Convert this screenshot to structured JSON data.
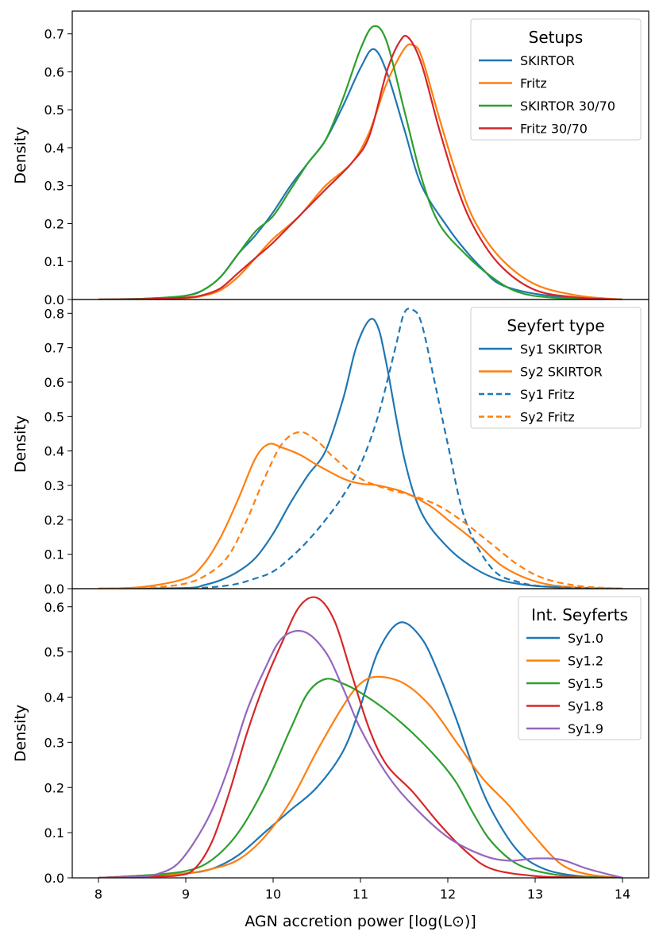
{
  "figure": {
    "xlabel": "AGN accretion power [log(L⊙)]",
    "x_ticks": [
      8,
      9,
      10,
      11,
      12,
      13,
      14
    ],
    "xlim": [
      7.7,
      14.3
    ]
  },
  "chart_data": [
    {
      "type": "line",
      "ylabel": "Density",
      "ylim": [
        0,
        0.76
      ],
      "y_ticks": [
        0.0,
        0.1,
        0.2,
        0.3,
        0.4,
        0.5,
        0.6,
        0.7
      ],
      "legend": {
        "title": "Setups",
        "position": "top-right"
      },
      "series": [
        {
          "name": "SKIRTOR",
          "color": "#1f77b4",
          "dash": false,
          "x": [
            8.0,
            8.5,
            8.8,
            9.0,
            9.2,
            9.4,
            9.6,
            9.8,
            10.0,
            10.2,
            10.4,
            10.6,
            10.8,
            11.0,
            11.15,
            11.3,
            11.5,
            11.7,
            12.0,
            12.2,
            12.4,
            12.6,
            13.0,
            13.5,
            14.0
          ],
          "y": [
            0.0,
            0.002,
            0.005,
            0.01,
            0.025,
            0.06,
            0.12,
            0.17,
            0.23,
            0.3,
            0.36,
            0.42,
            0.51,
            0.61,
            0.66,
            0.6,
            0.45,
            0.3,
            0.19,
            0.13,
            0.08,
            0.04,
            0.015,
            0.004,
            0.0
          ]
        },
        {
          "name": "Fritz",
          "color": "#ff7f0e",
          "dash": false,
          "x": [
            8.0,
            8.5,
            9.0,
            9.2,
            9.4,
            9.6,
            9.8,
            10.0,
            10.3,
            10.6,
            10.9,
            11.1,
            11.3,
            11.5,
            11.6,
            11.7,
            11.9,
            12.1,
            12.3,
            12.6,
            13.0,
            13.5,
            14.0
          ],
          "y": [
            0.0,
            0.001,
            0.004,
            0.01,
            0.025,
            0.06,
            0.11,
            0.16,
            0.22,
            0.3,
            0.36,
            0.44,
            0.57,
            0.66,
            0.67,
            0.64,
            0.48,
            0.33,
            0.21,
            0.11,
            0.04,
            0.01,
            0.0
          ]
        },
        {
          "name": "SKIRTOR 30/70",
          "color": "#2ca02c",
          "dash": false,
          "x": [
            8.0,
            8.5,
            9.0,
            9.2,
            9.4,
            9.6,
            9.8,
            10.0,
            10.2,
            10.4,
            10.6,
            10.8,
            11.0,
            11.15,
            11.3,
            11.5,
            11.7,
            11.9,
            12.2,
            12.5,
            12.8,
            13.2,
            14.0
          ],
          "y": [
            0.0,
            0.002,
            0.01,
            0.025,
            0.06,
            0.12,
            0.18,
            0.22,
            0.29,
            0.36,
            0.42,
            0.53,
            0.66,
            0.72,
            0.68,
            0.5,
            0.32,
            0.2,
            0.12,
            0.06,
            0.02,
            0.005,
            0.0
          ]
        },
        {
          "name": "Fritz 30/70",
          "color": "#d62728",
          "dash": false,
          "x": [
            8.0,
            8.5,
            9.0,
            9.2,
            9.4,
            9.6,
            9.8,
            10.0,
            10.3,
            10.6,
            10.9,
            11.1,
            11.3,
            11.45,
            11.55,
            11.7,
            11.9,
            12.1,
            12.3,
            12.6,
            13.0,
            13.5,
            14.0
          ],
          "y": [
            0.0,
            0.001,
            0.005,
            0.012,
            0.03,
            0.07,
            0.11,
            0.15,
            0.22,
            0.29,
            0.36,
            0.43,
            0.6,
            0.68,
            0.69,
            0.62,
            0.45,
            0.3,
            0.19,
            0.09,
            0.025,
            0.005,
            0.0
          ]
        }
      ]
    },
    {
      "type": "line",
      "ylabel": "Density",
      "ylim": [
        0,
        0.84
      ],
      "y_ticks": [
        0.0,
        0.1,
        0.2,
        0.3,
        0.4,
        0.5,
        0.6,
        0.7,
        0.8
      ],
      "legend": {
        "title": "Seyfert type",
        "position": "top-right"
      },
      "series": [
        {
          "name": "Sy1 SKIRTOR",
          "color": "#1f77b4",
          "dash": false,
          "x": [
            8.0,
            9.0,
            9.2,
            9.4,
            9.6,
            9.8,
            10.0,
            10.2,
            10.4,
            10.6,
            10.8,
            10.95,
            11.1,
            11.2,
            11.3,
            11.5,
            11.7,
            12.0,
            12.3,
            12.6,
            13.0,
            13.5,
            14.0
          ],
          "y": [
            0.0,
            0.002,
            0.01,
            0.025,
            0.05,
            0.09,
            0.16,
            0.25,
            0.33,
            0.4,
            0.55,
            0.7,
            0.78,
            0.76,
            0.65,
            0.38,
            0.22,
            0.12,
            0.06,
            0.025,
            0.008,
            0.002,
            0.0
          ]
        },
        {
          "name": "Sy2 SKIRTOR",
          "color": "#ff7f0e",
          "dash": false,
          "x": [
            8.0,
            8.5,
            9.0,
            9.2,
            9.4,
            9.6,
            9.8,
            9.95,
            10.1,
            10.3,
            10.5,
            10.8,
            11.0,
            11.2,
            11.5,
            11.8,
            12.0,
            12.3,
            12.6,
            12.9,
            13.2,
            13.6,
            14.0
          ],
          "y": [
            0.0,
            0.005,
            0.03,
            0.07,
            0.15,
            0.26,
            0.38,
            0.42,
            0.41,
            0.39,
            0.36,
            0.32,
            0.305,
            0.3,
            0.28,
            0.24,
            0.2,
            0.14,
            0.07,
            0.03,
            0.01,
            0.002,
            0.0
          ]
        },
        {
          "name": "Sy1 Fritz",
          "color": "#1f77b4",
          "dash": true,
          "x": [
            8.0,
            9.0,
            9.5,
            9.8,
            10.0,
            10.2,
            10.4,
            10.6,
            10.8,
            11.0,
            11.2,
            11.4,
            11.5,
            11.6,
            11.7,
            11.85,
            12.0,
            12.2,
            12.5,
            12.8,
            13.2,
            14.0
          ],
          "y": [
            0.0,
            0.001,
            0.01,
            0.03,
            0.05,
            0.09,
            0.14,
            0.2,
            0.27,
            0.36,
            0.5,
            0.7,
            0.8,
            0.81,
            0.77,
            0.6,
            0.42,
            0.2,
            0.06,
            0.02,
            0.005,
            0.0
          ]
        },
        {
          "name": "Sy2 Fritz",
          "color": "#ff7f0e",
          "dash": true,
          "x": [
            8.0,
            8.5,
            9.0,
            9.3,
            9.5,
            9.7,
            9.9,
            10.1,
            10.3,
            10.5,
            10.7,
            11.0,
            11.3,
            11.6,
            11.9,
            12.2,
            12.5,
            12.8,
            13.1,
            13.5,
            14.0
          ],
          "y": [
            0.0,
            0.002,
            0.015,
            0.05,
            0.1,
            0.2,
            0.32,
            0.42,
            0.455,
            0.43,
            0.38,
            0.32,
            0.29,
            0.27,
            0.24,
            0.19,
            0.13,
            0.07,
            0.03,
            0.008,
            0.0
          ]
        }
      ]
    },
    {
      "type": "line",
      "ylabel": "Density",
      "ylim": [
        0,
        0.64
      ],
      "y_ticks": [
        0.0,
        0.1,
        0.2,
        0.3,
        0.4,
        0.5,
        0.6
      ],
      "legend": {
        "title": "Int. Seyferts",
        "position": "top-right"
      },
      "series": [
        {
          "name": "Sy1.0",
          "color": "#1f77b4",
          "dash": false,
          "x": [
            8.0,
            8.5,
            9.0,
            9.3,
            9.6,
            9.9,
            10.2,
            10.5,
            10.8,
            11.0,
            11.2,
            11.45,
            11.7,
            11.9,
            12.1,
            12.3,
            12.5,
            12.8,
            13.1,
            13.5,
            14.0
          ],
          "y": [
            0.0,
            0.005,
            0.01,
            0.02,
            0.05,
            0.1,
            0.15,
            0.2,
            0.28,
            0.38,
            0.5,
            0.565,
            0.53,
            0.45,
            0.35,
            0.24,
            0.15,
            0.06,
            0.02,
            0.004,
            0.0
          ]
        },
        {
          "name": "Sy1.2",
          "color": "#ff7f0e",
          "dash": false,
          "x": [
            8.0,
            8.5,
            9.0,
            9.3,
            9.6,
            9.9,
            10.2,
            10.5,
            10.8,
            11.0,
            11.2,
            11.5,
            11.8,
            12.1,
            12.4,
            12.7,
            13.0,
            13.3,
            13.6,
            14.0
          ],
          "y": [
            0.0,
            0.005,
            0.01,
            0.02,
            0.04,
            0.09,
            0.17,
            0.28,
            0.38,
            0.43,
            0.445,
            0.43,
            0.38,
            0.3,
            0.22,
            0.16,
            0.09,
            0.03,
            0.008,
            0.0
          ]
        },
        {
          "name": "Sy1.5",
          "color": "#2ca02c",
          "dash": false,
          "x": [
            8.0,
            8.5,
            9.0,
            9.3,
            9.6,
            9.9,
            10.2,
            10.4,
            10.6,
            10.8,
            11.0,
            11.3,
            11.6,
            11.9,
            12.1,
            12.3,
            12.5,
            12.8,
            13.2,
            13.6,
            14.0
          ],
          "y": [
            0.0,
            0.005,
            0.015,
            0.04,
            0.1,
            0.2,
            0.33,
            0.41,
            0.44,
            0.43,
            0.41,
            0.37,
            0.32,
            0.26,
            0.21,
            0.14,
            0.08,
            0.03,
            0.008,
            0.002,
            0.0
          ]
        },
        {
          "name": "Sy1.8",
          "color": "#d62728",
          "dash": false,
          "x": [
            8.0,
            8.5,
            8.9,
            9.1,
            9.3,
            9.5,
            9.7,
            9.9,
            10.1,
            10.3,
            10.5,
            10.7,
            10.9,
            11.1,
            11.3,
            11.6,
            11.9,
            12.2,
            12.5,
            13.0,
            13.5,
            14.0
          ],
          "y": [
            0.0,
            0.003,
            0.005,
            0.02,
            0.08,
            0.19,
            0.32,
            0.43,
            0.52,
            0.6,
            0.62,
            0.57,
            0.45,
            0.33,
            0.25,
            0.19,
            0.12,
            0.06,
            0.02,
            0.004,
            0.001,
            0.0
          ]
        },
        {
          "name": "Sy1.9",
          "color": "#9467bd",
          "dash": false,
          "x": [
            8.0,
            8.5,
            8.7,
            8.9,
            9.1,
            9.3,
            9.5,
            9.7,
            9.9,
            10.1,
            10.35,
            10.6,
            10.8,
            11.0,
            11.3,
            11.6,
            12.0,
            12.4,
            12.7,
            13.0,
            13.3,
            13.6,
            14.0
          ],
          "y": [
            0.0,
            0.003,
            0.01,
            0.03,
            0.08,
            0.15,
            0.25,
            0.37,
            0.46,
            0.53,
            0.545,
            0.5,
            0.42,
            0.33,
            0.23,
            0.16,
            0.09,
            0.05,
            0.038,
            0.043,
            0.04,
            0.02,
            0.0
          ]
        }
      ]
    }
  ]
}
